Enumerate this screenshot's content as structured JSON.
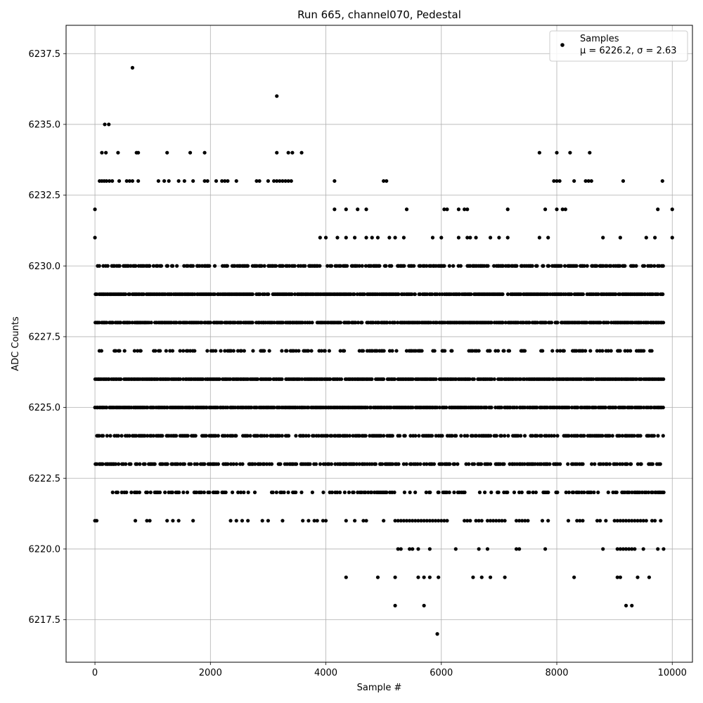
{
  "chart_data": {
    "type": "scatter",
    "title": "Run 665, channel070, Pedestal",
    "xlabel": "Sample #",
    "ylabel": "ADC Counts",
    "xlim": [
      -500,
      10350
    ],
    "ylim": [
      6216,
      6238.5
    ],
    "xticks": [
      0,
      2000,
      4000,
      6000,
      8000,
      10000
    ],
    "xtick_labels": [
      "0",
      "2000",
      "4000",
      "6000",
      "8000",
      "10000"
    ],
    "yticks": [
      6217.5,
      6220.0,
      6222.5,
      6225.0,
      6227.5,
      6230.0,
      6232.5,
      6235.0,
      6237.5
    ],
    "ytick_labels": [
      "6217.5",
      "6220.0",
      "6222.5",
      "6225.0",
      "6227.5",
      "6230.0",
      "6232.5",
      "6235.0",
      "6237.5"
    ],
    "grid": true,
    "legend": {
      "placement": "top-right",
      "entries": [
        {
          "label": "Samples",
          "stats": "μ = 6226.2, σ = 2.63"
        }
      ]
    },
    "marker_color": "#000000",
    "series": [
      {
        "name": "Samples",
        "levels": [
          {
            "y": 6237,
            "x": [
              650
            ]
          },
          {
            "y": 6236,
            "x": [
              3150
            ]
          },
          {
            "y": 6235,
            "x": [
              170,
              240
            ]
          },
          {
            "y": 6234,
            "x": [
              120,
              190,
              400,
              720,
              750,
              1250,
              1650,
              1900,
              3150,
              3350,
              3420,
              3580,
              7700,
              8000,
              8230,
              8570
            ]
          },
          {
            "y": 6233,
            "x": [
              80,
              120,
              160,
              200,
              250,
              300,
              420,
              550,
              600,
              650,
              750,
              1100,
              1200,
              1280,
              1450,
              1550,
              1700,
              1900,
              1950,
              2100,
              2200,
              2250,
              2300,
              2450,
              2800,
              2850,
              3000,
              3100,
              3150,
              3200,
              3250,
              3300,
              3350,
              3400,
              4150,
              5000,
              5050,
              7950,
              8000,
              8050,
              8300,
              8500,
              8550,
              8600,
              9150,
              9830
            ]
          },
          {
            "y": 6232,
            "x": [
              0,
              10000,
              4150,
              4350,
              4550,
              4700,
              5400,
              6050,
              6100,
              6300,
              6400,
              6450,
              7150,
              7800,
              8000,
              8100,
              8150,
              9750
            ]
          },
          {
            "y": 6231,
            "x": [
              0,
              10000,
              3900,
              4000,
              4200,
              4350,
              4500,
              4700,
              4800,
              4900,
              5100,
              5200,
              5350,
              5850,
              6000,
              6300,
              6450,
              6500,
              6600,
              6850,
              7000,
              7150,
              7700,
              7850,
              8800,
              9100,
              9550,
              9700
            ]
          },
          {
            "y": 6230,
            "x": [
              0,
              10000
            ]
          },
          {
            "y": 6229,
            "x": [
              0,
              10000
            ]
          },
          {
            "y": 6228,
            "x": [
              0,
              10000
            ]
          },
          {
            "y": 6227,
            "x": [
              0,
              10000
            ]
          },
          {
            "y": 6226,
            "x": [
              0,
              10000
            ]
          },
          {
            "y": 6225,
            "x": [
              0,
              10000
            ]
          },
          {
            "y": 6224,
            "x": [
              0,
              10000
            ]
          },
          {
            "y": 6223,
            "x": [
              0,
              10000
            ]
          },
          {
            "y": 6222,
            "x": [
              300,
              10000
            ]
          },
          {
            "y": 6221,
            "x": [
              0,
              30,
              700,
              900,
              950,
              1250,
              1350,
              1450,
              1700,
              2350,
              2450,
              2550,
              2650,
              2900,
              3000,
              3250,
              3600,
              3700,
              3800,
              3850,
              3950,
              4000,
              4350,
              4500,
              4650,
              4700,
              5000,
              5200,
              5250,
              5300,
              5350,
              5400,
              5450,
              5500,
              5550,
              5600,
              5650,
              5700,
              5750,
              5800,
              5850,
              5900,
              5950,
              6000,
              6050,
              6100,
              6400,
              6450,
              6500,
              6600,
              6650,
              6700,
              6800,
              6850,
              6900,
              6950,
              7000,
              7050,
              7100,
              7300,
              7350,
              7400,
              7450,
              7500,
              7750,
              7850,
              8200,
              8350,
              8400,
              8450,
              8700,
              8750,
              8850,
              9000,
              9050,
              9100,
              9150,
              9200,
              9250,
              9300,
              9350,
              9400,
              9450,
              9500,
              9550,
              9650,
              9700,
              9800
            ]
          },
          {
            "y": 6220,
            "x": [
              5250,
              5300,
              5450,
              5500,
              5600,
              5800,
              6250,
              6650,
              6800,
              7300,
              7350,
              7800,
              8800,
              9050,
              9100,
              9150,
              9200,
              9250,
              9300,
              9350,
              9500,
              9750,
              9850
            ]
          },
          {
            "y": 6219,
            "x": [
              4350,
              4900,
              5200,
              5600,
              5700,
              5800,
              5950,
              6550,
              6700,
              6850,
              7100,
              8300,
              9050,
              9100,
              9400,
              9600
            ]
          },
          {
            "y": 6218,
            "x": [
              5200,
              5700,
              9200,
              9300
            ]
          },
          {
            "y": 6217,
            "x": [
              5930
            ]
          }
        ]
      }
    ]
  }
}
